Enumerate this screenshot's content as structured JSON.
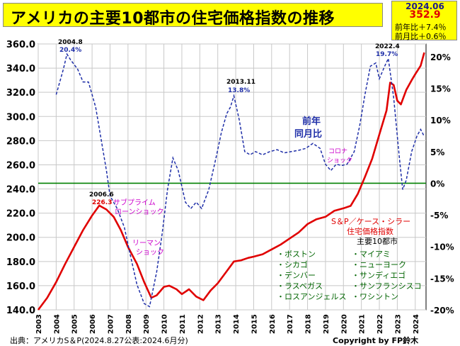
{
  "title": "アメリカの主要10都市の住宅価格指数の推移",
  "latest": {
    "date": "2024.06",
    "value": "352.9",
    "yoy": "前年比＋7.4％",
    "mom": "前月比＋0.6％"
  },
  "footer": {
    "source": "出典：アメリカS＆P(2024.8.27公表:2024.6月分)",
    "copyright": "Copyright by FP鈴木"
  },
  "colors": {
    "index_line": "#e00000",
    "yoy_line": "#1f2fa8",
    "zero_line": "#008000",
    "annotation_blue": "#1f2fa8",
    "annotation_magenta": "#cc00cc",
    "annotation_green": "#006400",
    "annotation_red": "#e00000"
  },
  "chart_data": {
    "type": "line",
    "x_range": [
      2003.0,
      2024.6
    ],
    "y_left_range": [
      140,
      360
    ],
    "y_left_ticks": [
      "140.0",
      "160.0",
      "180.0",
      "200.0",
      "220.0",
      "240.0",
      "260.0",
      "280.0",
      "300.0",
      "320.0",
      "340.0",
      "360.0"
    ],
    "y_right_range": [
      -20,
      22
    ],
    "y_right_ticks": [
      "-20%",
      "-15%",
      "-10%",
      "-5%",
      "0%",
      "5%",
      "10%",
      "15%",
      "20%"
    ],
    "x_ticks": [
      "2003",
      "2004",
      "2005",
      "2006",
      "2007",
      "2008",
      "2009",
      "2010",
      "2011",
      "2012",
      "2013",
      "2014",
      "2015",
      "2016",
      "2017",
      "2018",
      "2019",
      "2020",
      "2021",
      "2022",
      "2023",
      "2024"
    ],
    "grid": true,
    "series": [
      {
        "name": "S＆P／ケース・シラー住宅価格指数 主要10都市",
        "axis": "left",
        "style": "solid",
        "points": [
          [
            2003.0,
            140
          ],
          [
            2003.5,
            150
          ],
          [
            2004.0,
            163
          ],
          [
            2004.5,
            178
          ],
          [
            2005.0,
            192
          ],
          [
            2005.5,
            206
          ],
          [
            2006.0,
            218
          ],
          [
            2006.4,
            226.3
          ],
          [
            2006.8,
            223
          ],
          [
            2007.2,
            217
          ],
          [
            2007.6,
            206
          ],
          [
            2008.0,
            192
          ],
          [
            2008.5,
            178
          ],
          [
            2008.9,
            163
          ],
          [
            2009.3,
            150
          ],
          [
            2009.6,
            152
          ],
          [
            2010.0,
            159
          ],
          [
            2010.3,
            160
          ],
          [
            2010.7,
            157
          ],
          [
            2011.0,
            153
          ],
          [
            2011.4,
            157
          ],
          [
            2011.8,
            151
          ],
          [
            2012.2,
            148
          ],
          [
            2012.6,
            156
          ],
          [
            2013.0,
            162
          ],
          [
            2013.5,
            172
          ],
          [
            2013.9,
            180
          ],
          [
            2014.3,
            181
          ],
          [
            2014.7,
            183
          ],
          [
            2015.0,
            184
          ],
          [
            2015.5,
            186
          ],
          [
            2016.0,
            190
          ],
          [
            2016.5,
            194
          ],
          [
            2017.0,
            199
          ],
          [
            2017.5,
            204
          ],
          [
            2018.0,
            211
          ],
          [
            2018.5,
            215
          ],
          [
            2019.0,
            217
          ],
          [
            2019.5,
            222
          ],
          [
            2020.0,
            224
          ],
          [
            2020.4,
            226
          ],
          [
            2020.8,
            236
          ],
          [
            2021.2,
            250
          ],
          [
            2021.6,
            265
          ],
          [
            2022.0,
            285
          ],
          [
            2022.4,
            305
          ],
          [
            2022.6,
            328
          ],
          [
            2022.8,
            326
          ],
          [
            2023.0,
            313
          ],
          [
            2023.2,
            310
          ],
          [
            2023.5,
            322
          ],
          [
            2023.8,
            330
          ],
          [
            2024.0,
            335
          ],
          [
            2024.3,
            342
          ],
          [
            2024.5,
            352.9
          ]
        ]
      },
      {
        "name": "前年同月比",
        "axis": "right",
        "style": "dashed",
        "points": [
          [
            2004.0,
            14
          ],
          [
            2004.4,
            18
          ],
          [
            2004.6,
            20.4
          ],
          [
            2004.8,
            19.5
          ],
          [
            2005.2,
            18.0
          ],
          [
            2005.5,
            16
          ],
          [
            2005.8,
            16
          ],
          [
            2006.2,
            12
          ],
          [
            2006.5,
            7
          ],
          [
            2006.8,
            2
          ],
          [
            2007.0,
            -2
          ],
          [
            2007.4,
            -4
          ],
          [
            2007.8,
            -7
          ],
          [
            2008.1,
            -11
          ],
          [
            2008.5,
            -16
          ],
          [
            2008.9,
            -19
          ],
          [
            2009.2,
            -19.5
          ],
          [
            2009.6,
            -14
          ],
          [
            2009.9,
            -8
          ],
          [
            2010.2,
            -1
          ],
          [
            2010.5,
            4
          ],
          [
            2010.8,
            2
          ],
          [
            2011.2,
            -3
          ],
          [
            2011.5,
            -4
          ],
          [
            2011.8,
            -3
          ],
          [
            2012.1,
            -4
          ],
          [
            2012.5,
            -1
          ],
          [
            2012.9,
            4
          ],
          [
            2013.2,
            8
          ],
          [
            2013.5,
            11
          ],
          [
            2013.7,
            12
          ],
          [
            2013.9,
            13.8
          ],
          [
            2014.2,
            10
          ],
          [
            2014.5,
            5
          ],
          [
            2014.8,
            4.5
          ],
          [
            2015.1,
            5
          ],
          [
            2015.5,
            4.5
          ],
          [
            2015.9,
            5
          ],
          [
            2016.3,
            5.3
          ],
          [
            2016.7,
            4.8
          ],
          [
            2017.1,
            5.0
          ],
          [
            2017.5,
            5.2
          ],
          [
            2017.9,
            5.5
          ],
          [
            2018.3,
            6.3
          ],
          [
            2018.7,
            5.5
          ],
          [
            2019.0,
            3.0
          ],
          [
            2019.3,
            2.0
          ],
          [
            2019.6,
            3.0
          ],
          [
            2019.9,
            2.8
          ],
          [
            2020.2,
            3.0
          ],
          [
            2020.6,
            5.0
          ],
          [
            2020.9,
            9.0
          ],
          [
            2021.2,
            14.0
          ],
          [
            2021.5,
            18.5
          ],
          [
            2021.8,
            19.0
          ],
          [
            2022.0,
            16.5
          ],
          [
            2022.3,
            18.5
          ],
          [
            2022.5,
            19.7
          ],
          [
            2022.8,
            13.5
          ],
          [
            2023.1,
            4.5
          ],
          [
            2023.3,
            -1.0
          ],
          [
            2023.5,
            0.5
          ],
          [
            2023.8,
            5.0
          ],
          [
            2024.1,
            7.5
          ],
          [
            2024.3,
            8.5
          ],
          [
            2024.5,
            7.4
          ]
        ]
      }
    ],
    "annotations": {
      "peak_2004": {
        "date": "2004.8",
        "value": "20.4%"
      },
      "peak_2006": {
        "date": "2006.6",
        "value": "226.3"
      },
      "peak_2013": {
        "date": "2013.11",
        "value": "13.8%"
      },
      "peak_2022": {
        "date": "2022.4",
        "value": "19.7%"
      },
      "subprime": [
        "サブプライム",
        "ローンショック"
      ],
      "lehman": [
        "リーマン",
        "ショック"
      ],
      "corona": [
        "コロナ",
        "ショック"
      ],
      "yoy_label": [
        "前年",
        "同月比"
      ],
      "index_label": [
        "S＆P／ケース・シラー",
        "住宅価格指数",
        "主要10都市"
      ],
      "cities_left": [
        "・ボストン",
        "・シカゴ",
        "・デンバー",
        "・ラスベガス",
        "・ロスアンジェルス"
      ],
      "cities_right": [
        "・マイアミ",
        "・ニューヨーク",
        "・サンディエゴ",
        "・サンフランシスコ",
        "・ワシントン"
      ]
    }
  }
}
